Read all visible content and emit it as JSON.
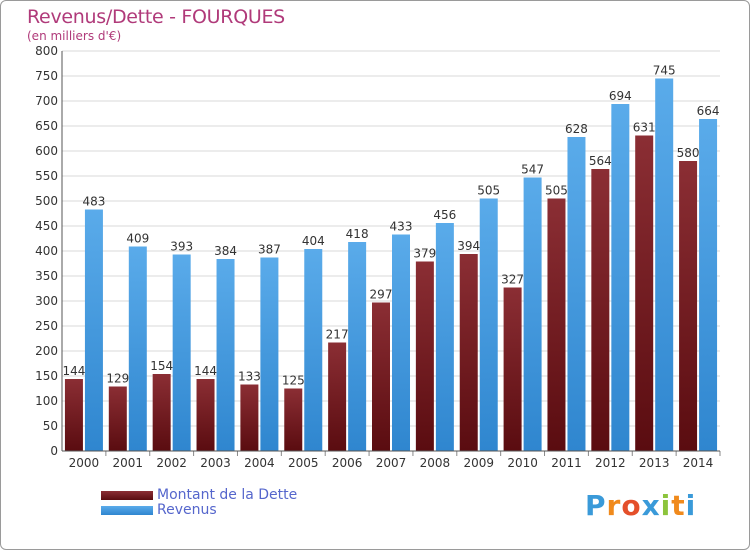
{
  "header": {
    "title": "Revenus/Dette - FOURQUES",
    "subtitle": "(en milliers d'€)"
  },
  "legend": {
    "dette_label": "Montant de la Dette",
    "revenus_label": "Revenus"
  },
  "logo": {
    "text": "Proxiti",
    "letters": [
      "P",
      "r",
      "o",
      "x",
      "i",
      "t",
      "i"
    ],
    "colors": [
      "#3a9ad9",
      "#f08a1c",
      "#e44f2a",
      "#3a9ad9",
      "#8cc43c",
      "#f08a1c",
      "#3a9ad9"
    ]
  },
  "colors": {
    "dette_top": "#8b2e34",
    "dette_bottom": "#5a0c10",
    "revenus_top": "#5aabea",
    "revenus_bottom": "#2f86cf",
    "grid": "#d9d9d9",
    "axis_text": "#333333"
  },
  "chart_data": {
    "type": "bar",
    "title": "Revenus/Dette - FOURQUES",
    "ylabel": "(en milliers d'€)",
    "xlabel": "",
    "ylim": [
      0,
      800
    ],
    "yticks": [
      0,
      50,
      100,
      150,
      200,
      250,
      300,
      350,
      400,
      450,
      500,
      550,
      600,
      650,
      700,
      750,
      800
    ],
    "grid": true,
    "legend_position": "bottom-left",
    "categories": [
      "2000",
      "2001",
      "2002",
      "2003",
      "2004",
      "2005",
      "2006",
      "2007",
      "2008",
      "2009",
      "2010",
      "2011",
      "2012",
      "2013",
      "2014"
    ],
    "series": [
      {
        "name": "Montant de la Dette",
        "values": [
          144,
          129,
          154,
          144,
          133,
          125,
          217,
          297,
          379,
          394,
          327,
          505,
          564,
          631,
          580
        ]
      },
      {
        "name": "Revenus",
        "values": [
          483,
          409,
          393,
          384,
          387,
          404,
          418,
          433,
          456,
          505,
          547,
          628,
          694,
          745,
          664
        ]
      }
    ]
  }
}
